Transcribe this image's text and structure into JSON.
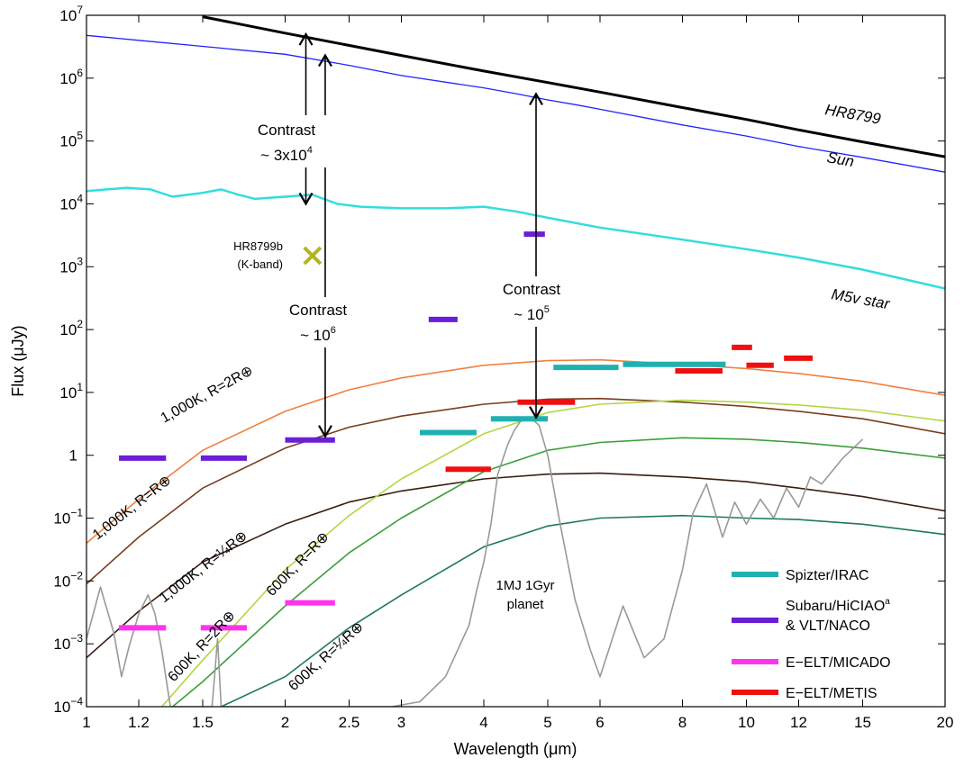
{
  "chart_data": {
    "type": "line",
    "xlabel": "Wavelength (μm)",
    "ylabel": "Flux (μJy)",
    "xscale": "log",
    "yscale": "log",
    "xlim": [
      1,
      20
    ],
    "ylim": [
      0.0001,
      10000000
    ],
    "grid": false,
    "legend_position": "bottom-right",
    "x_ticks": [
      1,
      1.2,
      1.5,
      2,
      2.5,
      3,
      4,
      5,
      6,
      8,
      10,
      12,
      15,
      20
    ],
    "x_tick_labels": [
      "1",
      "1.2",
      "1.5",
      "2",
      "2.5",
      "3",
      "4",
      "5",
      "6",
      "8",
      "10",
      "12",
      "15",
      "20"
    ],
    "y_ticks": [
      {
        "value": 0.0001,
        "base": "10",
        "exp": "−4"
      },
      {
        "value": 0.001,
        "base": "10",
        "exp": "−3"
      },
      {
        "value": 0.01,
        "base": "10",
        "exp": "−2"
      },
      {
        "value": 0.1,
        "base": "10",
        "exp": "−1"
      },
      {
        "value": 1,
        "base": "1",
        "exp": ""
      },
      {
        "value": 10,
        "base": "10",
        "exp": "1"
      },
      {
        "value": 100,
        "base": "10",
        "exp": "2"
      },
      {
        "value": 1000,
        "base": "10",
        "exp": "3"
      },
      {
        "value": 10000,
        "base": "10",
        "exp": "4"
      },
      {
        "value": 100000,
        "base": "10",
        "exp": "5"
      },
      {
        "value": 1000000,
        "base": "10",
        "exp": "6"
      },
      {
        "value": 10000000,
        "base": "10",
        "exp": "7"
      }
    ],
    "series": [
      {
        "name": "HR8799",
        "color": "#000000",
        "width": 3,
        "x": [
          1.5,
          2,
          3,
          4,
          5,
          6,
          8,
          10,
          12,
          15,
          20
        ],
        "y": [
          9500000,
          5200000,
          2300000,
          1300000,
          850000,
          600000,
          340000,
          220000,
          150000,
          97000,
          56000
        ]
      },
      {
        "name": "Sun",
        "color": "#2222ff",
        "width": 1.3,
        "x": [
          1,
          1.2,
          1.5,
          2,
          2.5,
          3,
          4,
          4.5,
          5,
          5.5,
          6,
          8,
          10,
          12,
          15,
          20
        ],
        "y": [
          4800000,
          4000000,
          3200000,
          2400000,
          1600000,
          1100000,
          700000,
          560000,
          450000,
          380000,
          320000,
          180000,
          120000,
          82000,
          55000,
          32000
        ]
      },
      {
        "name": "M5v star",
        "color": "#33dddd",
        "width": 2.5,
        "x": [
          1,
          1.15,
          1.25,
          1.35,
          1.5,
          1.6,
          1.7,
          1.8,
          2,
          2.2,
          2.4,
          2.6,
          3,
          3.5,
          4,
          4.5,
          5,
          6,
          8,
          10,
          12,
          15,
          20
        ],
        "y": [
          16000,
          18000,
          17000,
          13000,
          15000,
          17000,
          14000,
          12000,
          13000,
          14000,
          10000,
          9000,
          8500,
          8500,
          9000,
          7500,
          6000,
          4200,
          2700,
          1900,
          1400,
          900,
          450
        ]
      },
      {
        "name": "1,000K, R=2R⊕",
        "color": "#f08040",
        "width": 1.6,
        "x": [
          1,
          1.2,
          1.5,
          2,
          2.5,
          3,
          4,
          5,
          6,
          8,
          10,
          12,
          15,
          20
        ],
        "y": [
          0.04,
          0.2,
          1.2,
          5,
          11,
          17,
          27,
          32,
          33,
          28,
          24,
          20,
          15,
          9
        ]
      },
      {
        "name": "1,000K, R=R⊕",
        "color": "#7a3c1e",
        "width": 1.6,
        "x": [
          1,
          1.2,
          1.5,
          2,
          2.5,
          3,
          4,
          5,
          6,
          8,
          10,
          12,
          15,
          20
        ],
        "y": [
          0.009,
          0.05,
          0.3,
          1.3,
          2.8,
          4.2,
          6.5,
          7.8,
          8,
          7,
          6,
          5,
          3.8,
          2.2
        ]
      },
      {
        "name": "1,000K, R=¼R⊕",
        "color": "#3a1e10",
        "width": 1.6,
        "x": [
          1,
          1.2,
          1.5,
          2,
          2.5,
          3,
          4,
          5,
          6,
          8,
          10,
          12,
          15,
          20
        ],
        "y": [
          0.0006,
          0.0033,
          0.02,
          0.08,
          0.18,
          0.27,
          0.42,
          0.5,
          0.52,
          0.45,
          0.38,
          0.3,
          0.22,
          0.13
        ]
      },
      {
        "name": "600K, R=2R⊕",
        "color": "#b0d840",
        "width": 1.6,
        "x": [
          1.3,
          1.5,
          2,
          2.5,
          3,
          4,
          5,
          6,
          8,
          10,
          12,
          15,
          20
        ],
        "y": [
          0.0001,
          0.00055,
          0.015,
          0.11,
          0.42,
          2.2,
          4.8,
          6.5,
          7.5,
          7,
          6.3,
          5.2,
          3.5
        ]
      },
      {
        "name": "600K, R=R⊕",
        "color": "#3a9e3a",
        "width": 1.6,
        "x": [
          1.35,
          1.5,
          2,
          2.5,
          3,
          4,
          5,
          6,
          8,
          10,
          12,
          15,
          20
        ],
        "y": [
          0.0001,
          0.00025,
          0.004,
          0.028,
          0.1,
          0.55,
          1.2,
          1.6,
          1.9,
          1.8,
          1.6,
          1.3,
          0.9
        ]
      },
      {
        "name": "600K, R=¼R⊕",
        "color": "#1e7a52",
        "width": 1.6,
        "x": [
          1.6,
          2,
          2.5,
          3,
          4,
          5,
          6,
          8,
          10,
          12,
          15,
          20
        ],
        "y": [
          0.0001,
          0.0003,
          0.0018,
          0.006,
          0.035,
          0.075,
          0.1,
          0.11,
          0.1,
          0.095,
          0.08,
          0.055
        ]
      },
      {
        "name": "1MJ 1Gyr planet",
        "color": "#999999",
        "width": 1.6,
        "x": [
          1,
          1.05,
          1.1,
          1.13,
          1.16,
          1.2,
          1.24,
          1.27,
          1.3,
          1.34,
          1.55,
          1.58,
          1.6,
          1.65,
          1.9,
          2.1,
          2.5,
          2.9,
          3.2,
          3.5,
          3.8,
          3.9,
          4.0,
          4.1,
          4.2,
          4.35,
          4.45,
          4.55,
          4.7,
          4.85,
          5.0,
          5.2,
          5.5,
          5.8,
          6.0,
          6.5,
          7.0,
          7.5,
          8.0,
          8.3,
          8.7,
          9.2,
          9.6,
          10,
          10.5,
          11,
          11.5,
          12,
          12.5,
          13,
          14,
          15
        ],
        "y": [
          0.0012,
          0.008,
          0.0015,
          0.0003,
          0.0009,
          0.003,
          0.006,
          0.003,
          0.0008,
          0.0001,
          0.0001,
          0.0012,
          0.0001,
          0.0001,
          0.0001,
          0.0001,
          0.0001,
          0.0001,
          0.00012,
          0.0003,
          0.002,
          0.007,
          0.02,
          0.08,
          0.5,
          1.5,
          2.5,
          3.5,
          4,
          3,
          1,
          0.1,
          0.005,
          0.0008,
          0.0003,
          0.004,
          0.0006,
          0.0012,
          0.015,
          0.12,
          0.35,
          0.05,
          0.18,
          0.08,
          0.2,
          0.1,
          0.3,
          0.15,
          0.45,
          0.35,
          0.9,
          1.8
        ]
      }
    ],
    "instrument_bands": [
      {
        "instrument": "Subaru/HiCIAO & VLT/NACO",
        "color": "#6a1fd6",
        "x0": 1.12,
        "x1": 1.32,
        "y": 0.9
      },
      {
        "instrument": "Subaru/HiCIAO & VLT/NACO",
        "color": "#6a1fd6",
        "x0": 1.49,
        "x1": 1.75,
        "y": 0.9
      },
      {
        "instrument": "Subaru/HiCIAO & VLT/NACO",
        "color": "#6a1fd6",
        "x0": 2.0,
        "x1": 2.38,
        "y": 1.75
      },
      {
        "instrument": "Subaru/HiCIAO & VLT/NACO",
        "color": "#6a1fd6",
        "x0": 3.3,
        "x1": 3.65,
        "y": 145
      },
      {
        "instrument": "Subaru/HiCIAO & VLT/NACO",
        "color": "#6a1fd6",
        "x0": 4.6,
        "x1": 4.95,
        "y": 3300
      },
      {
        "instrument": "E−ELT/MICADO",
        "color": "#ff33ee",
        "x0": 1.12,
        "x1": 1.32,
        "y": 0.0018
      },
      {
        "instrument": "E−ELT/MICADO",
        "color": "#ff33ee",
        "x0": 1.49,
        "x1": 1.75,
        "y": 0.0018
      },
      {
        "instrument": "E−ELT/MICADO",
        "color": "#ff33ee",
        "x0": 2.0,
        "x1": 2.38,
        "y": 0.0045
      },
      {
        "instrument": "Spitzer/IRAC",
        "color": "#20b0b0",
        "x0": 3.2,
        "x1": 3.9,
        "y": 2.3
      },
      {
        "instrument": "Spitzer/IRAC",
        "color": "#20b0b0",
        "x0": 4.1,
        "x1": 5.0,
        "y": 3.8
      },
      {
        "instrument": "Spitzer/IRAC",
        "color": "#20b0b0",
        "x0": 5.1,
        "x1": 6.4,
        "y": 25
      },
      {
        "instrument": "Spitzer/IRAC",
        "color": "#20b0b0",
        "x0": 6.5,
        "x1": 9.3,
        "y": 28
      },
      {
        "instrument": "E−ELT/METIS",
        "color": "#ee1010",
        "x0": 3.5,
        "x1": 4.1,
        "y": 0.6
      },
      {
        "instrument": "E−ELT/METIS",
        "color": "#ee1010",
        "x0": 4.5,
        "x1": 5.5,
        "y": 7
      },
      {
        "instrument": "E−ELT/METIS",
        "color": "#ee1010",
        "x0": 7.8,
        "x1": 9.2,
        "y": 22
      },
      {
        "instrument": "E−ELT/METIS",
        "color": "#ee1010",
        "x0": 9.5,
        "x1": 10.2,
        "y": 52
      },
      {
        "instrument": "E−ELT/METIS",
        "color": "#ee1010",
        "x0": 10.0,
        "x1": 11.0,
        "y": 27
      },
      {
        "instrument": "E−ELT/METIS",
        "color": "#ee1010",
        "x0": 11.4,
        "x1": 12.6,
        "y": 35
      }
    ],
    "marker": {
      "label_line1": "HR8799b",
      "label_line2": "(K-band)",
      "x": 2.2,
      "y": 1500,
      "color": "#b5b51a"
    },
    "arrows": [
      {
        "x": 2.15,
        "y_from": 10000,
        "y_to": 5000000,
        "dir": "both"
      },
      {
        "x": 2.3,
        "y_from": 2,
        "y_to": 2300000,
        "dir": "both"
      },
      {
        "x": 4.8,
        "y_from": 4,
        "y_to": 560000,
        "dir": "both"
      }
    ],
    "annotations": {
      "contrast1": {
        "line1": "Contrast",
        "line2_prefix": "~ 3x10",
        "line2_exp": "4"
      },
      "contrast2": {
        "line1": "Contrast",
        "line2_prefix": "~ 10",
        "line2_exp": "6"
      },
      "contrast3": {
        "line1": "Contrast",
        "line2_prefix": "~ 10",
        "line2_exp": "5"
      },
      "planet_label_line1": "1MJ 1Gyr",
      "planet_label_line2": "planet",
      "hr8799": "HR8799",
      "sun": "Sun",
      "m5v": "M5v star",
      "curve_1000_2": "1,000K, R=2R⊕",
      "curve_1000_1": "1,000K, R=R⊕",
      "curve_1000_q": "1,000K, R=¼R⊕",
      "curve_600_2": "600K, R=2R⊕",
      "curve_600_1": "600K, R=R⊕",
      "curve_600_q": "600K, R=¼R⊕"
    },
    "legend": [
      {
        "label": "Spizter/IRAC",
        "color": "#20b0b0"
      },
      {
        "label": "Subaru/HiCIAO",
        "sup": "a",
        "label2": "& VLT/NACO",
        "color": "#6a1fd6"
      },
      {
        "label": "E−ELT/MICADO",
        "color": "#ff33ee"
      },
      {
        "label": "E−ELT/METIS",
        "color": "#ee1010"
      }
    ]
  }
}
